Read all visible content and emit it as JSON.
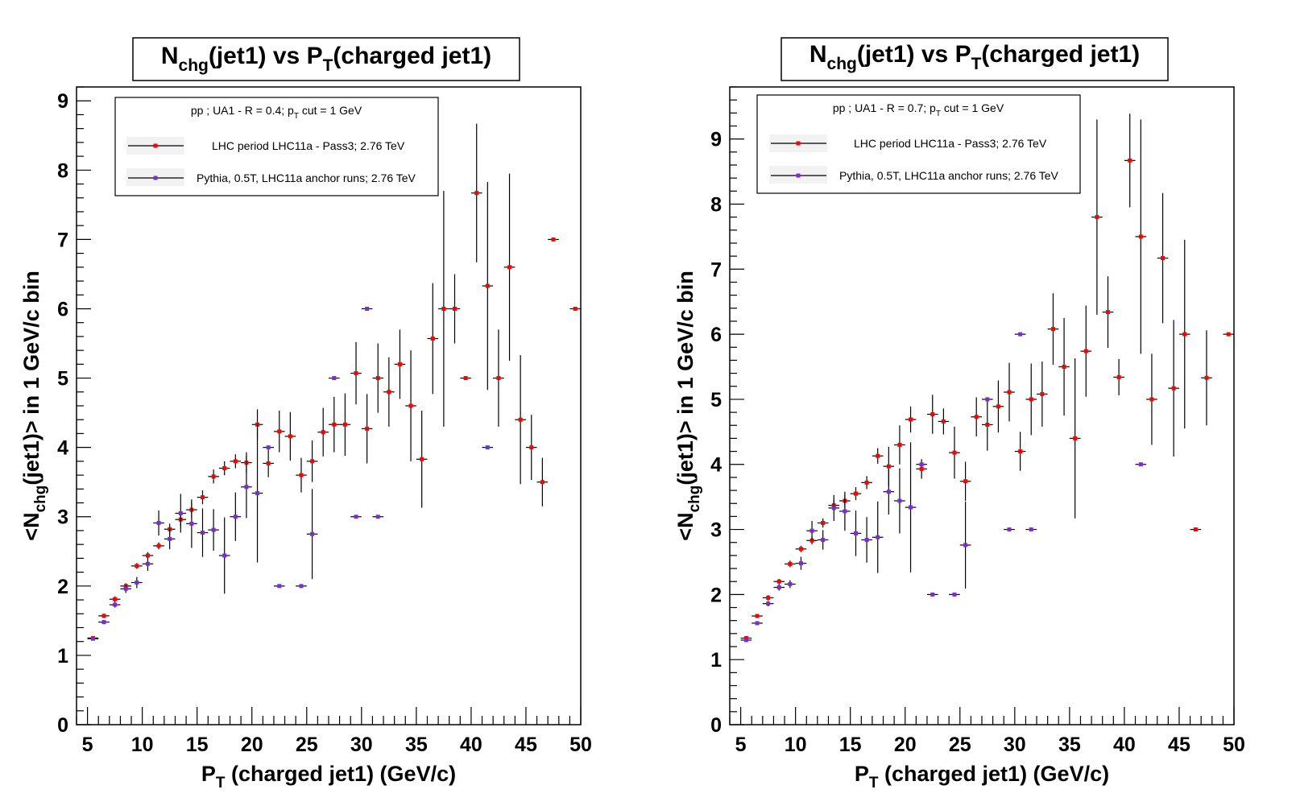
{
  "chart_data": [
    {
      "type": "scatter",
      "title": {
        "main": "N",
        "sub": "chg",
        "mid": "(jet1) vs P",
        "sub2": "T",
        "tail": "(charged jet1)"
      },
      "xlabel": {
        "main": "P",
        "sub": "T",
        "tail": " (charged jet1) (GeV/c)"
      },
      "ylabel": {
        "pre": "<N",
        "sub": "chg",
        "tail": "(jet1)> in 1 GeV/c bin"
      },
      "xlim": [
        4,
        50
      ],
      "ylim": [
        0,
        9.2
      ],
      "xticks": [
        5,
        10,
        15,
        20,
        25,
        30,
        35,
        40,
        45,
        50
      ],
      "yticks": [
        0,
        1,
        2,
        3,
        4,
        5,
        6,
        7,
        8,
        9
      ],
      "legend": {
        "header": {
          "pre": "pp ; UA1 - R = 0.4; p",
          "sub": "T",
          "tail": " cut = 1 GeV"
        },
        "placement": "top-left"
      },
      "series": [
        {
          "name": "LHC period LHC11a - Pass3; 2.76 TeV",
          "color": "#ff0000",
          "points": [
            {
              "x": 5.5,
              "y": 1.25,
              "err": 0.02
            },
            {
              "x": 6.5,
              "y": 1.57,
              "err": 0.03
            },
            {
              "x": 7.5,
              "y": 1.81,
              "err": 0.04
            },
            {
              "x": 8.5,
              "y": 2.0,
              "err": 0.04
            },
            {
              "x": 9.5,
              "y": 2.29,
              "err": 0.04
            },
            {
              "x": 10.5,
              "y": 2.44,
              "err": 0.05
            },
            {
              "x": 11.5,
              "y": 2.58,
              "err": 0.05
            },
            {
              "x": 12.5,
              "y": 2.82,
              "err": 0.08
            },
            {
              "x": 13.5,
              "y": 2.96,
              "err": 0.1
            },
            {
              "x": 14.5,
              "y": 3.1,
              "err": 0.12
            },
            {
              "x": 15.5,
              "y": 3.28,
              "err": 0.1
            },
            {
              "x": 16.5,
              "y": 3.58,
              "err": 0.1
            },
            {
              "x": 17.5,
              "y": 3.7,
              "err": 0.1
            },
            {
              "x": 18.5,
              "y": 3.8,
              "err": 0.1
            },
            {
              "x": 19.5,
              "y": 3.78,
              "err": 0.15
            },
            {
              "x": 20.5,
              "y": 4.33,
              "err": 0.22
            },
            {
              "x": 21.5,
              "y": 3.77,
              "err": 0.2
            },
            {
              "x": 22.5,
              "y": 4.23,
              "err": 0.3
            },
            {
              "x": 23.5,
              "y": 4.16,
              "err": 0.35
            },
            {
              "x": 24.5,
              "y": 3.6,
              "err": 0.25
            },
            {
              "x": 25.5,
              "y": 3.8,
              "err": 0.3
            },
            {
              "x": 26.5,
              "y": 4.22,
              "err": 0.35
            },
            {
              "x": 27.5,
              "y": 4.33,
              "err": 0.4
            },
            {
              "x": 28.5,
              "y": 4.33,
              "err": 0.45
            },
            {
              "x": 29.5,
              "y": 5.07,
              "err": 0.45
            },
            {
              "x": 30.5,
              "y": 4.27,
              "err": 0.5
            },
            {
              "x": 31.5,
              "y": 5.0,
              "err": 0.5
            },
            {
              "x": 32.5,
              "y": 4.8,
              "err": 0.5
            },
            {
              "x": 33.5,
              "y": 5.2,
              "err": 0.5
            },
            {
              "x": 34.5,
              "y": 4.6,
              "err": 0.8
            },
            {
              "x": 35.5,
              "y": 3.83,
              "err": 0.7
            },
            {
              "x": 36.5,
              "y": 5.57,
              "err": 0.8
            },
            {
              "x": 37.5,
              "y": 6.0,
              "err": 1.7
            },
            {
              "x": 38.5,
              "y": 6.0,
              "err": 0.5
            },
            {
              "x": 39.5,
              "y": 5.0,
              "err": 0.02
            },
            {
              "x": 40.5,
              "y": 7.67,
              "err": 1.0
            },
            {
              "x": 41.5,
              "y": 6.33,
              "err": 1.5
            },
            {
              "x": 42.5,
              "y": 5.0,
              "err": 0.7
            },
            {
              "x": 43.5,
              "y": 6.6,
              "err": 1.35
            },
            {
              "x": 44.5,
              "y": 4.4,
              "err": 0.93
            },
            {
              "x": 45.5,
              "y": 4.0,
              "err": 0.47
            },
            {
              "x": 46.5,
              "y": 3.5,
              "err": 0.35
            },
            {
              "x": 47.5,
              "y": 7.0,
              "err": 0.0
            },
            {
              "x": 49.5,
              "y": 6.0,
              "err": 0.0
            }
          ]
        },
        {
          "name": "Pythia, 0.5T, LHC11a anchor runs; 2.76 TeV",
          "color": "#7b2cd9",
          "points": [
            {
              "x": 5.5,
              "y": 1.24,
              "err": 0.02
            },
            {
              "x": 6.5,
              "y": 1.48,
              "err": 0.03
            },
            {
              "x": 7.5,
              "y": 1.73,
              "err": 0.04
            },
            {
              "x": 8.5,
              "y": 1.96,
              "err": 0.06
            },
            {
              "x": 9.5,
              "y": 2.05,
              "err": 0.08
            },
            {
              "x": 10.5,
              "y": 2.32,
              "err": 0.1
            },
            {
              "x": 11.5,
              "y": 2.91,
              "err": 0.18
            },
            {
              "x": 12.5,
              "y": 2.68,
              "err": 0.15
            },
            {
              "x": 13.5,
              "y": 3.05,
              "err": 0.28
            },
            {
              "x": 14.5,
              "y": 2.9,
              "err": 0.35
            },
            {
              "x": 15.5,
              "y": 2.77,
              "err": 0.35
            },
            {
              "x": 16.5,
              "y": 2.81,
              "err": 0.3
            },
            {
              "x": 17.5,
              "y": 2.44,
              "err": 0.55
            },
            {
              "x": 18.5,
              "y": 3.0,
              "err": 0.35
            },
            {
              "x": 19.5,
              "y": 3.43,
              "err": 0.45
            },
            {
              "x": 20.5,
              "y": 3.34,
              "err": 1.0
            },
            {
              "x": 21.5,
              "y": 4.0,
              "err": 0.0
            },
            {
              "x": 22.5,
              "y": 2.0,
              "err": 0.0
            },
            {
              "x": 24.5,
              "y": 2.0,
              "err": 0.0
            },
            {
              "x": 25.5,
              "y": 2.75,
              "err": 0.65
            },
            {
              "x": 27.5,
              "y": 5.0,
              "err": 0.0
            },
            {
              "x": 29.5,
              "y": 3.0,
              "err": 0.0
            },
            {
              "x": 30.5,
              "y": 6.0,
              "err": 0.0
            },
            {
              "x": 31.5,
              "y": 3.0,
              "err": 0.0
            },
            {
              "x": 41.5,
              "y": 4.0,
              "err": 0.0
            }
          ]
        }
      ]
    },
    {
      "type": "scatter",
      "title": {
        "main": "N",
        "sub": "chg",
        "mid": "(jet1) vs P",
        "sub2": "T",
        "tail": "(charged jet1)"
      },
      "xlabel": {
        "main": "P",
        "sub": "T",
        "tail": " (charged jet1) (GeV/c)"
      },
      "ylabel": {
        "pre": "<N",
        "sub": "chg",
        "tail": "(jet1)> in 1 GeV/c bin"
      },
      "xlim": [
        4,
        50
      ],
      "ylim": [
        0,
        9.8
      ],
      "xticks": [
        5,
        10,
        15,
        20,
        25,
        30,
        35,
        40,
        45,
        50
      ],
      "yticks": [
        0,
        1,
        2,
        3,
        4,
        5,
        6,
        7,
        8,
        9
      ],
      "legend": {
        "header": {
          "pre": "pp ; UA1 - R = 0.7; p",
          "sub": "T",
          "tail": " cut = 1 GeV"
        },
        "placement": "top-left"
      },
      "series": [
        {
          "name": "LHC period LHC11a - Pass3; 2.76 TeV",
          "color": "#ff0000",
          "points": [
            {
              "x": 5.5,
              "y": 1.33,
              "err": 0.03
            },
            {
              "x": 6.5,
              "y": 1.67,
              "err": 0.03
            },
            {
              "x": 7.5,
              "y": 1.95,
              "err": 0.04
            },
            {
              "x": 8.5,
              "y": 2.2,
              "err": 0.04
            },
            {
              "x": 9.5,
              "y": 2.47,
              "err": 0.05
            },
            {
              "x": 10.5,
              "y": 2.7,
              "err": 0.05
            },
            {
              "x": 11.5,
              "y": 2.83,
              "err": 0.06
            },
            {
              "x": 12.5,
              "y": 3.1,
              "err": 0.07
            },
            {
              "x": 13.5,
              "y": 3.37,
              "err": 0.08
            },
            {
              "x": 14.5,
              "y": 3.44,
              "err": 0.1
            },
            {
              "x": 15.5,
              "y": 3.55,
              "err": 0.1
            },
            {
              "x": 16.5,
              "y": 3.72,
              "err": 0.1
            },
            {
              "x": 17.5,
              "y": 4.13,
              "err": 0.12
            },
            {
              "x": 18.5,
              "y": 3.97,
              "err": 0.3
            },
            {
              "x": 19.5,
              "y": 4.3,
              "err": 0.3
            },
            {
              "x": 20.5,
              "y": 4.69,
              "err": 0.2
            },
            {
              "x": 21.5,
              "y": 3.93,
              "err": 0.15
            },
            {
              "x": 22.5,
              "y": 4.77,
              "err": 0.3
            },
            {
              "x": 23.5,
              "y": 4.66,
              "err": 0.2
            },
            {
              "x": 24.5,
              "y": 4.18,
              "err": 0.4
            },
            {
              "x": 25.5,
              "y": 3.74,
              "err": 0.3
            },
            {
              "x": 26.5,
              "y": 4.73,
              "err": 0.3
            },
            {
              "x": 27.5,
              "y": 4.61,
              "err": 0.4
            },
            {
              "x": 28.5,
              "y": 4.89,
              "err": 0.4
            },
            {
              "x": 29.5,
              "y": 5.11,
              "err": 0.45
            },
            {
              "x": 30.5,
              "y": 4.2,
              "err": 0.3
            },
            {
              "x": 31.5,
              "y": 5.0,
              "err": 0.55
            },
            {
              "x": 32.5,
              "y": 5.08,
              "err": 0.5
            },
            {
              "x": 33.5,
              "y": 6.08,
              "err": 0.55
            },
            {
              "x": 34.5,
              "y": 5.5,
              "err": 0.75
            },
            {
              "x": 35.5,
              "y": 4.4,
              "err": 1.23
            },
            {
              "x": 36.5,
              "y": 5.74,
              "err": 0.7
            },
            {
              "x": 37.5,
              "y": 7.8,
              "err": 1.5
            },
            {
              "x": 38.5,
              "y": 6.34,
              "err": 0.55
            },
            {
              "x": 39.5,
              "y": 5.34,
              "err": 0.28
            },
            {
              "x": 40.5,
              "y": 8.67,
              "err": 0.72
            },
            {
              "x": 41.5,
              "y": 7.5,
              "err": 1.8
            },
            {
              "x": 42.5,
              "y": 5.0,
              "err": 0.7
            },
            {
              "x": 43.5,
              "y": 7.17,
              "err": 1.0
            },
            {
              "x": 44.5,
              "y": 5.17,
              "err": 1.05
            },
            {
              "x": 45.5,
              "y": 6.0,
              "err": 1.45
            },
            {
              "x": 46.5,
              "y": 3.0,
              "err": 0.0
            },
            {
              "x": 47.5,
              "y": 5.33,
              "err": 0.73
            },
            {
              "x": 49.5,
              "y": 6.0,
              "err": 0.0
            }
          ]
        },
        {
          "name": "Pythia, 0.5T, LHC11a anchor runs; 2.76 TeV",
          "color": "#7b2cd9",
          "points": [
            {
              "x": 5.5,
              "y": 1.3,
              "err": 0.03
            },
            {
              "x": 6.5,
              "y": 1.56,
              "err": 0.03
            },
            {
              "x": 7.5,
              "y": 1.86,
              "err": 0.04
            },
            {
              "x": 8.5,
              "y": 2.11,
              "err": 0.05
            },
            {
              "x": 9.5,
              "y": 2.16,
              "err": 0.06
            },
            {
              "x": 10.5,
              "y": 2.48,
              "err": 0.1
            },
            {
              "x": 11.5,
              "y": 2.98,
              "err": 0.15
            },
            {
              "x": 12.5,
              "y": 2.84,
              "err": 0.15
            },
            {
              "x": 13.5,
              "y": 3.33,
              "err": 0.2
            },
            {
              "x": 14.5,
              "y": 3.28,
              "err": 0.3
            },
            {
              "x": 15.5,
              "y": 2.94,
              "err": 0.35
            },
            {
              "x": 16.5,
              "y": 2.84,
              "err": 0.35
            },
            {
              "x": 17.5,
              "y": 2.88,
              "err": 0.55
            },
            {
              "x": 18.5,
              "y": 3.58,
              "err": 0.35
            },
            {
              "x": 19.5,
              "y": 3.44,
              "err": 0.5
            },
            {
              "x": 20.5,
              "y": 3.34,
              "err": 1.0
            },
            {
              "x": 21.5,
              "y": 4.0,
              "err": 0.0
            },
            {
              "x": 22.5,
              "y": 2.0,
              "err": 0.0
            },
            {
              "x": 24.5,
              "y": 2.0,
              "err": 0.0
            },
            {
              "x": 25.5,
              "y": 2.76,
              "err": 0.67
            },
            {
              "x": 27.5,
              "y": 5.0,
              "err": 0.0
            },
            {
              "x": 29.5,
              "y": 3.0,
              "err": 0.0
            },
            {
              "x": 30.5,
              "y": 6.0,
              "err": 0.0
            },
            {
              "x": 31.5,
              "y": 3.0,
              "err": 0.0
            },
            {
              "x": 41.5,
              "y": 4.0,
              "err": 0.0
            }
          ]
        }
      ]
    }
  ]
}
